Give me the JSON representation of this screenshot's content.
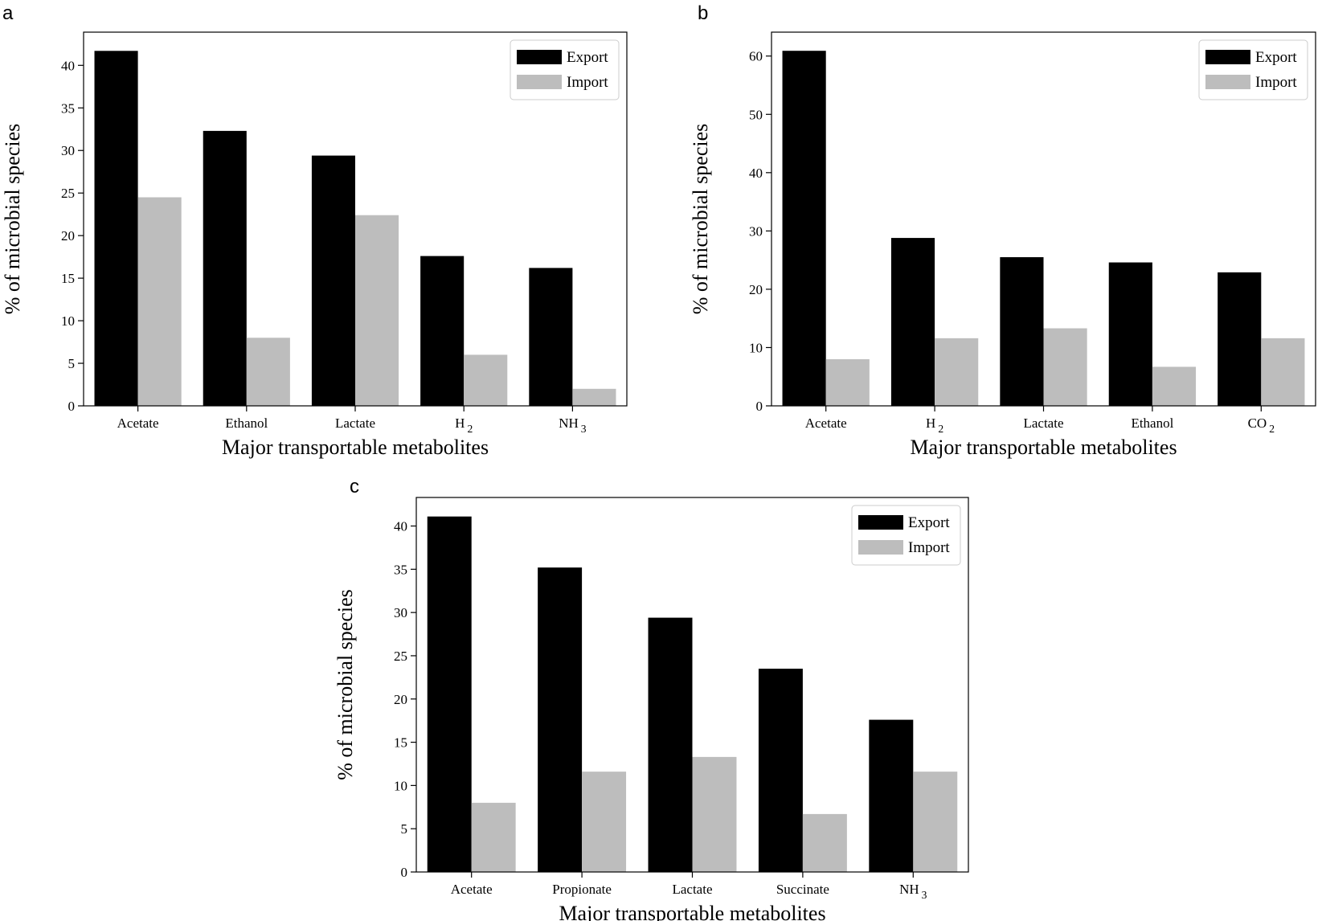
{
  "chart_data": [
    {
      "panel": "a",
      "type": "bar",
      "categories": [
        "Acetate",
        "Ethanol",
        "Lactate",
        "H_2",
        "NH_3"
      ],
      "series": [
        {
          "name": "Export",
          "color": "#000000",
          "values": [
            41.7,
            32.3,
            29.4,
            17.6,
            16.2
          ]
        },
        {
          "name": "Import",
          "color": "#bdbdbd",
          "values": [
            24.5,
            8.0,
            22.4,
            6.0,
            2.0
          ]
        }
      ],
      "xlabel": "Major transportable metabolites",
      "ylabel": "% of microbial species",
      "ylim": [
        0,
        43.9
      ],
      "yticks": [
        0,
        5,
        10,
        15,
        20,
        25,
        30,
        35,
        40
      ],
      "legend": "top-right",
      "grid": false
    },
    {
      "panel": "b",
      "type": "bar",
      "categories": [
        "Acetate",
        "H_2",
        "Lactate",
        "Ethanol",
        "CO_2"
      ],
      "series": [
        {
          "name": "Export",
          "color": "#000000",
          "values": [
            60.9,
            28.8,
            25.5,
            24.6,
            22.9
          ]
        },
        {
          "name": "Import",
          "color": "#bdbdbd",
          "values": [
            8.0,
            11.6,
            13.3,
            6.7,
            11.6
          ]
        }
      ],
      "xlabel": "Major transportable metabolites",
      "ylabel": "% of microbial species",
      "ylim": [
        0,
        64.1
      ],
      "yticks": [
        0,
        10,
        20,
        30,
        40,
        50,
        60
      ],
      "legend": "top-right",
      "grid": false
    },
    {
      "panel": "c",
      "type": "bar",
      "categories": [
        "Acetate",
        "Propionate",
        "Lactate",
        "Succinate",
        "NH_3"
      ],
      "series": [
        {
          "name": "Export",
          "color": "#000000",
          "values": [
            41.1,
            35.2,
            29.4,
            23.5,
            17.6
          ]
        },
        {
          "name": "Import",
          "color": "#bdbdbd",
          "values": [
            8.0,
            11.6,
            13.3,
            6.7,
            11.6
          ]
        }
      ],
      "xlabel": "Major transportable metabolites",
      "ylabel": "% of microbial species",
      "ylim": [
        0,
        43.3
      ],
      "yticks": [
        0,
        5,
        10,
        15,
        20,
        25,
        30,
        35,
        40
      ],
      "legend": "top-right",
      "grid": false
    }
  ]
}
